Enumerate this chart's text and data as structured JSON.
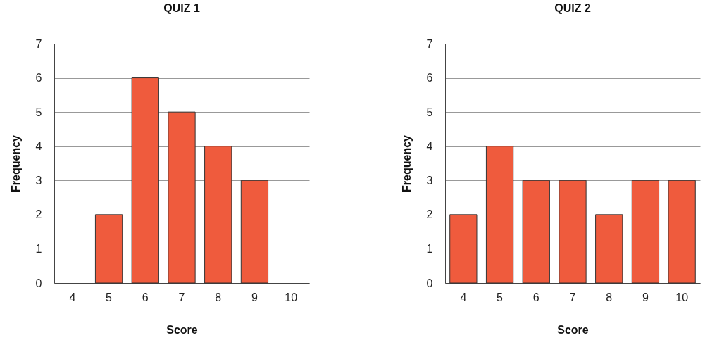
{
  "chart_data": [
    {
      "type": "bar",
      "title": "QUIZ 1",
      "xlabel": "Score",
      "ylabel": "Frequency",
      "categories": [
        "4",
        "5",
        "6",
        "7",
        "8",
        "9",
        "10"
      ],
      "values": [
        0,
        2,
        6,
        5,
        4,
        3,
        0
      ],
      "color": "#ef5b3d",
      "ylim": [
        0,
        7
      ],
      "yticks": [
        0,
        1,
        2,
        3,
        4,
        5,
        6,
        7
      ],
      "grid": "y"
    },
    {
      "type": "bar",
      "title": "QUIZ 2",
      "xlabel": "Score",
      "ylabel": "Frequency",
      "categories": [
        "4",
        "5",
        "6",
        "7",
        "8",
        "9",
        "10"
      ],
      "values": [
        2,
        4,
        3,
        3,
        2,
        3,
        3
      ],
      "color": "#ef5b3d",
      "ylim": [
        0,
        7
      ],
      "yticks": [
        0,
        1,
        2,
        3,
        4,
        5,
        6,
        7
      ],
      "grid": "y"
    }
  ]
}
